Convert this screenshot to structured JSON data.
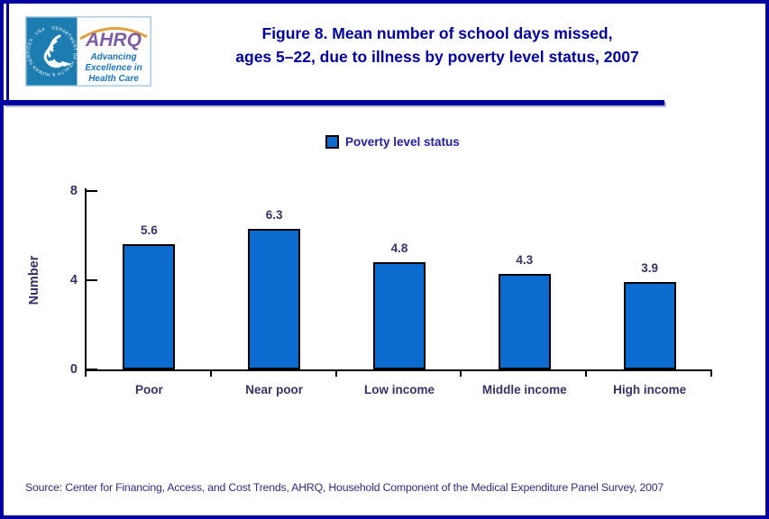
{
  "header": {
    "title_line1": "Figure 8. Mean number of school days missed,",
    "title_line2": "ages 5–22, due to illness by poverty level status, 2007",
    "logo": {
      "ring_text": "DEPARTMENT OF HEALTH & HUMAN SERVICES · USA",
      "acronym": "AHRQ",
      "tagline_line1": "Advancing",
      "tagline_line2": "Excellence in",
      "tagline_line3": "Health Care"
    }
  },
  "legend": {
    "label": "Poverty level status"
  },
  "chart_data": {
    "type": "bar",
    "title": "Figure 8. Mean number of school days missed, ages 5–22, due to illness by poverty level status, 2007",
    "categories": [
      "Poor",
      "Near poor",
      "Low income",
      "Middle income",
      "High income"
    ],
    "values": [
      5.6,
      6.3,
      4.8,
      4.3,
      3.9
    ],
    "data_labels": [
      "5.6",
      "6.3",
      "4.8",
      "4.3",
      "3.9"
    ],
    "series_name": "Poverty level status",
    "xlabel": "",
    "ylabel": "Number",
    "ylim": [
      0,
      8
    ],
    "yticks": [
      0,
      4,
      8
    ],
    "grid": false,
    "legend_position": "top-center",
    "bar_color": "#0B6BCE",
    "bar_border_color": "#000000"
  },
  "footer": {
    "source": "Source: Center for Financing, Access, and Cost Trends, AHRQ, Household Component of the Medical Expenditure Panel Survey, 2007"
  },
  "colors": {
    "accent_navy": "#0000A0",
    "chart_text": "#333366",
    "bar_fill": "#0B6BCE",
    "logo_blue": "#1D7CB0",
    "ahrq_purple": "#7D5CA3",
    "ahrq_orange": "#E2A13F",
    "tagline_blue": "#1B75BC"
  }
}
